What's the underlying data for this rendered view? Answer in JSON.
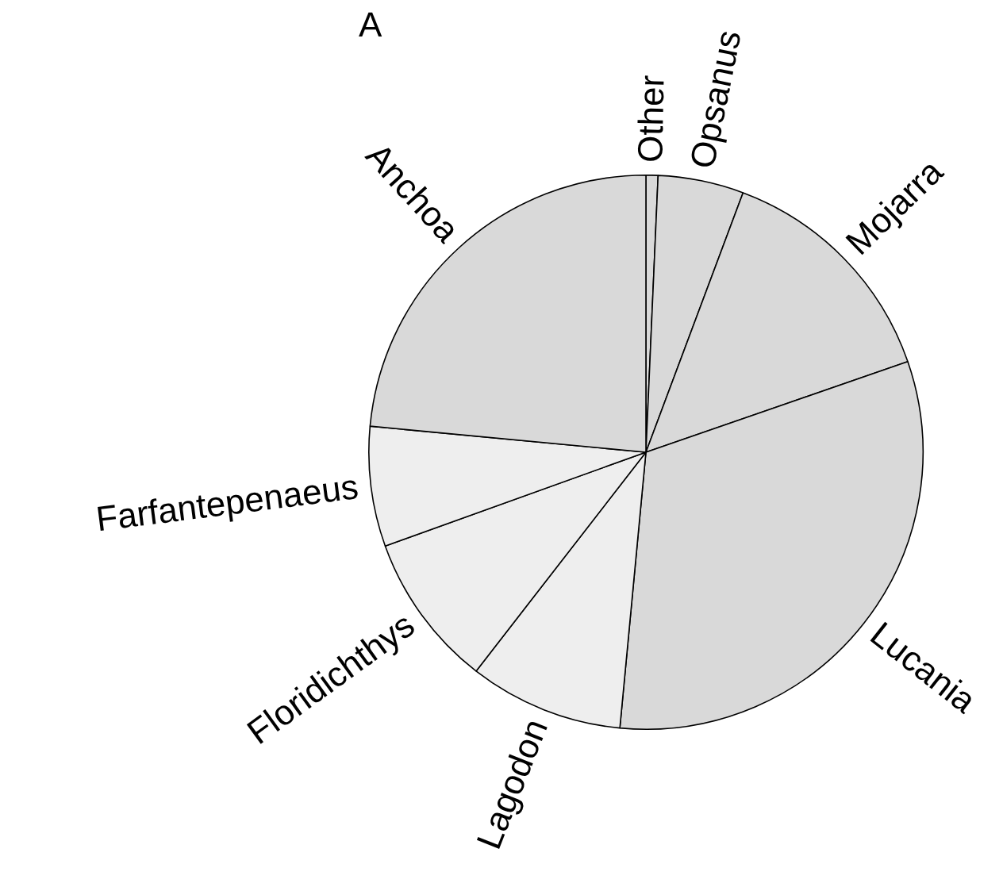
{
  "chart_data": {
    "type": "pie",
    "title": "A",
    "categories": [
      "Other",
      "Opsanus",
      "Mojarra",
      "Lucania",
      "Lagodon",
      "Floridichthys",
      "Farfantepenaeus",
      "Anchoa"
    ],
    "values": [
      0.7,
      5,
      14,
      31.8,
      9,
      9,
      7,
      23.5
    ],
    "colors": [
      "#d9d9d9",
      "#d9d9d9",
      "#d9d9d9",
      "#d9d9d9",
      "#eeeeee",
      "#eeeeee",
      "#eeeeee",
      "#d9d9d9"
    ],
    "legend": false
  }
}
